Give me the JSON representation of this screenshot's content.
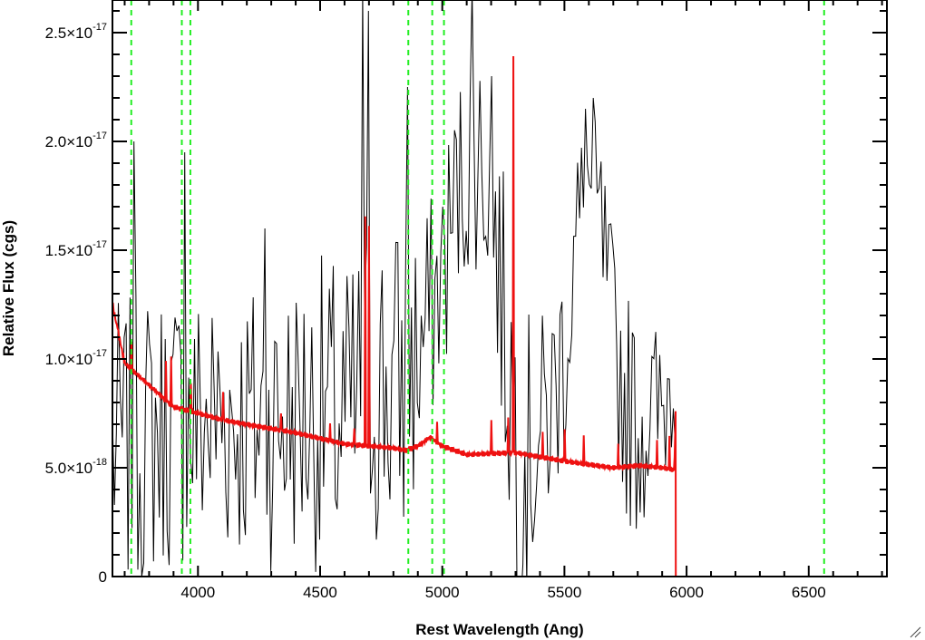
{
  "chart_data": {
    "type": "line",
    "title": "",
    "xlabel": "Rest Wavelength (Ang)",
    "ylabel": "Relative Flux (cgs)",
    "xlim": [
      3650,
      6820
    ],
    "ylim": [
      0,
      2.65e-17
    ],
    "x_ticks": [
      4000,
      4500,
      5000,
      5500,
      6000,
      6500
    ],
    "x_tick_labels": [
      "4000",
      "4500",
      "5000",
      "5500",
      "6000",
      "6500"
    ],
    "y_ticks": [
      0,
      5e-18,
      1e-17,
      1.5e-17,
      2e-17,
      2.5e-17
    ],
    "y_tick_labels": [
      {
        "mantissa": "0",
        "exponent": ""
      },
      {
        "mantissa": "5.0×10",
        "exponent": "-18"
      },
      {
        "mantissa": "1.0×10",
        "exponent": "-17"
      },
      {
        "mantissa": "1.5×10",
        "exponent": "-17"
      },
      {
        "mantissa": "2.0×10",
        "exponent": "-17"
      },
      {
        "mantissa": "2.5×10",
        "exponent": "-17"
      }
    ],
    "grid": false,
    "legend": "none",
    "line_markers": [
      3727,
      3934,
      3969,
      4861,
      4959,
      5007,
      6563
    ],
    "series": [
      {
        "role": "observed-spectrum",
        "color": "#000000",
        "sample_step": 8,
        "data_end_x": 5955,
        "envelope_x": [
          3650,
          3700,
          3800,
          3900,
          4000,
          4100,
          4200,
          4300,
          4400,
          4500,
          4600,
          4650,
          4700,
          4750,
          4800,
          4850,
          4900,
          4950,
          5000,
          5050,
          5100,
          5150,
          5200,
          5250,
          5300,
          5350,
          5400,
          5450,
          5500,
          5550,
          5600,
          5650,
          5700,
          5750,
          5800,
          5850,
          5900,
          5955
        ],
        "envelope_y": [
          6e-18,
          6e-18,
          6.5e-18,
          7e-18,
          7e-18,
          7.5e-18,
          7e-18,
          7e-18,
          7.5e-18,
          7.5e-18,
          7e-18,
          7.5e-18,
          9e-18,
          9e-18,
          8.5e-18,
          9e-18,
          1e-17,
          1.2e-17,
          1.4e-17,
          1.7e-17,
          1.9e-17,
          1.95e-17,
          1.8e-17,
          1.2e-17,
          7e-18,
          5.5e-18,
          6.5e-18,
          8e-18,
          1.05e-17,
          1.55e-17,
          1.8e-17,
          1.6e-17,
          1.1e-17,
          8e-18,
          7e-18,
          7.5e-18,
          7.5e-18,
          1e-17
        ],
        "noise_y": [
          5e-18,
          5e-18,
          5e-18,
          5e-18,
          5e-18,
          5e-18,
          5e-18,
          5e-18,
          5e-18,
          5.5e-18,
          5.5e-18,
          6e-18,
          6e-18,
          6e-18,
          6e-18,
          6e-18,
          5e-18,
          4e-18,
          4e-18,
          4e-18,
          4e-18,
          4e-18,
          4e-18,
          5e-18,
          6e-18,
          5e-18,
          4e-18,
          4e-18,
          4e-18,
          3.5e-18,
          3e-18,
          3e-18,
          3.5e-18,
          4e-18,
          4e-18,
          3.5e-18,
          3e-18,
          3e-18
        ],
        "spikes": [
          {
            "x": 3735,
            "y": 2e-17
          },
          {
            "x": 3945,
            "y": 1.95e-17
          },
          {
            "x": 4270,
            "y": 1.6e-17
          },
          {
            "x": 4675,
            "y": 2.7e-17
          },
          {
            "x": 4700,
            "y": 2.6e-17
          },
          {
            "x": 4860,
            "y": 2.25e-17
          },
          {
            "x": 5120,
            "y": 2.7e-17
          },
          {
            "x": 5200,
            "y": 2.3e-17
          },
          {
            "x": 5585,
            "y": 2.15e-17
          },
          {
            "x": 5620,
            "y": 2.2e-17
          }
        ]
      },
      {
        "role": "model-fit",
        "color": "#ee1111",
        "continuum_x": [
          3650,
          3700,
          3800,
          3900,
          4000,
          4100,
          4200,
          4400,
          4600,
          4800,
          4850,
          4900,
          4950,
          5000,
          5100,
          5300,
          5500,
          5700,
          5800,
          5900,
          5950,
          5955,
          5956,
          6820
        ],
        "continuum_y": [
          1.25e-17,
          9.8e-18,
          8.8e-18,
          7.8e-18,
          7.5e-18,
          7.2e-18,
          7e-18,
          6.6e-18,
          6.1e-18,
          5.9e-18,
          5.8e-18,
          6e-18,
          6.4e-18,
          6e-18,
          5.6e-18,
          5.7e-18,
          5.3e-18,
          5e-18,
          5.1e-18,
          5e-18,
          4.9e-18,
          7.6e-18,
          0,
          0
        ],
        "lines": [
          {
            "x": 3670,
            "y": 1.15e-17
          },
          {
            "x": 3727,
            "y": 1.08e-17
          },
          {
            "x": 3870,
            "y": 9.8e-18
          },
          {
            "x": 3890,
            "y": 1e-17
          },
          {
            "x": 3970,
            "y": 9e-18
          },
          {
            "x": 4102,
            "y": 8.6e-18
          },
          {
            "x": 4340,
            "y": 7.6e-18
          },
          {
            "x": 4540,
            "y": 7e-18
          },
          {
            "x": 4640,
            "y": 6.9e-18
          },
          {
            "x": 4686,
            "y": 1.65e-17
          },
          {
            "x": 4700,
            "y": 1.6e-17
          },
          {
            "x": 4980,
            "y": 7e-18
          },
          {
            "x": 5200,
            "y": 7.2e-18
          },
          {
            "x": 5270,
            "y": 7.4e-18
          },
          {
            "x": 5290,
            "y": 2.4e-17
          },
          {
            "x": 5410,
            "y": 6.6e-18
          },
          {
            "x": 5500,
            "y": 6.8e-18
          },
          {
            "x": 5580,
            "y": 6.4e-18
          },
          {
            "x": 5720,
            "y": 6e-18
          },
          {
            "x": 5880,
            "y": 6.2e-18
          },
          {
            "x": 5930,
            "y": 6.4e-18
          }
        ]
      }
    ],
    "marker_color": "#22ee22"
  }
}
